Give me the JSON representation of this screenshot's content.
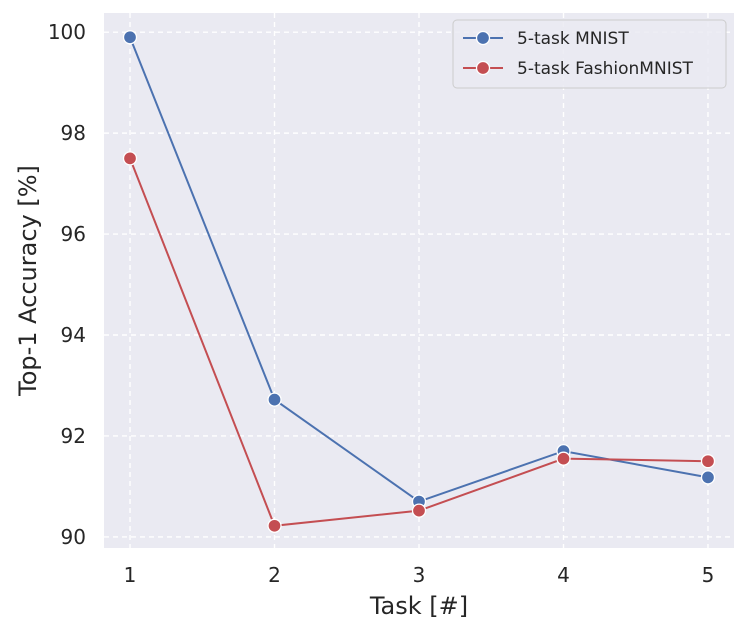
{
  "chart_data": {
    "type": "line",
    "xlabel": "Task [#]",
    "ylabel": "Top-1 Accuracy [%]",
    "x": [
      1,
      2,
      3,
      4,
      5
    ],
    "xlim": [
      0.82,
      5.18
    ],
    "ylim": [
      89.78,
      100.38
    ],
    "xticks": [
      1,
      2,
      3,
      4,
      5
    ],
    "yticks": [
      90,
      92,
      94,
      96,
      98,
      100
    ],
    "grid": true,
    "legend_position": "top-right",
    "series": [
      {
        "name": "5-task MNIST",
        "color": "#4c72b0",
        "values": [
          99.9,
          92.72,
          90.7,
          91.7,
          91.18
        ]
      },
      {
        "name": "5-task FashionMNIST",
        "color": "#c44e52",
        "values": [
          97.5,
          90.22,
          90.52,
          91.55,
          91.5
        ]
      }
    ]
  }
}
